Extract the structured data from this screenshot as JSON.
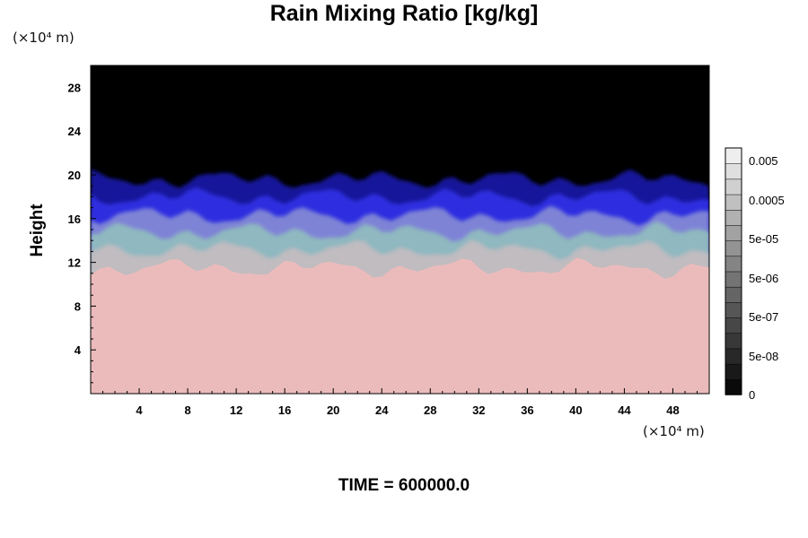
{
  "chart_data": {
    "type": "heatmap",
    "title": "Rain Mixing Ratio [kg/kg]",
    "xlabel": "",
    "ylabel": "Height",
    "x_unit": "(×10⁴ m)",
    "y_unit": "(×10⁴ m)",
    "xlim": [
      0,
      51
    ],
    "ylim": [
      0,
      30
    ],
    "x_ticks": [
      4,
      8,
      12,
      16,
      20,
      24,
      28,
      32,
      36,
      40,
      44,
      48
    ],
    "y_ticks": [
      4,
      8,
      12,
      16,
      20,
      24,
      28
    ],
    "layers": [
      {
        "from": 0,
        "to": 11.5,
        "color": "#ebbbbb"
      },
      {
        "from": 11.5,
        "to": 13.2,
        "color": "#c0bcc0"
      },
      {
        "from": 13.2,
        "to": 14.8,
        "color": "#8fb8c0"
      },
      {
        "from": 14.8,
        "to": 16.3,
        "color": "#7e83d6"
      },
      {
        "from": 16.3,
        "to": 18.0,
        "color": "#2f2fe0"
      },
      {
        "from": 18.0,
        "to": 19.6,
        "color": "#14149a"
      },
      {
        "from": 19.6,
        "to": 30,
        "color": "#000000"
      }
    ],
    "colorbar": {
      "tick_labels": [
        "0.005",
        "0.0005",
        "5e-05",
        "5e-06",
        "5e-07",
        "5e-08",
        "0"
      ],
      "min_label": "0"
    },
    "footer": "TIME = 600000.0"
  }
}
